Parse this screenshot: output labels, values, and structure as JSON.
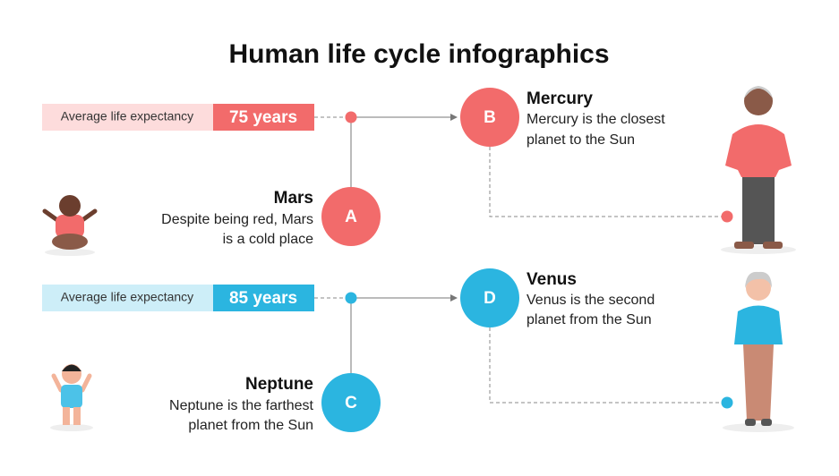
{
  "title": "Human life cycle infographics",
  "rows": [
    {
      "label": "Average life expectancy",
      "value": "75 years"
    },
    {
      "label": "Average life expectancy",
      "value": "85 years"
    }
  ],
  "nodes": [
    {
      "letter": "A",
      "title": "Mars",
      "lines": [
        "Despite being red, Mars",
        "is a cold place"
      ]
    },
    {
      "letter": "B",
      "title": "Mercury",
      "lines": [
        "Mercury is the closest",
        "planet to the Sun"
      ]
    },
    {
      "letter": "C",
      "title": "Neptune",
      "lines": [
        "Neptune is the farthest",
        "planet from the Sun"
      ]
    },
    {
      "letter": "D",
      "title": "Venus",
      "lines": [
        "Venus is the second",
        "planet from the Sun"
      ]
    }
  ]
}
